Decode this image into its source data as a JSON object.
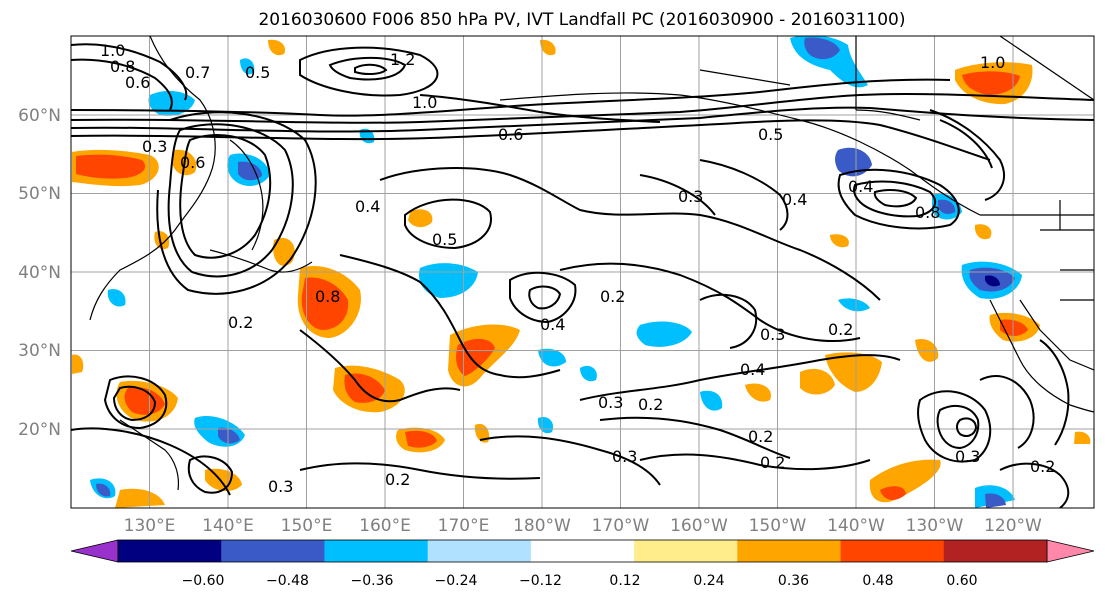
{
  "title": "2016030600 F006 850 hPa PV, IVT Landfall PC (2016030900 - 2016031100)",
  "lat_labels": [
    "60°N",
    "50°N",
    "40°N",
    "30°N",
    "20°N"
  ],
  "lon_labels": [
    "130°E",
    "140°E",
    "150°E",
    "160°E",
    "170°E",
    "180°W",
    "170°W",
    "160°W",
    "150°W",
    "140°W",
    "130°W",
    "120°W"
  ],
  "colorbar": {
    "ticks": [
      "−0.60",
      "−0.48",
      "−0.36",
      "−0.24",
      "−0.12",
      "0.12",
      "0.24",
      "0.36",
      "0.48",
      "0.60"
    ],
    "colors": [
      "#9932cc",
      "#000080",
      "#3a5bc7",
      "#00bfff",
      "#b0e2ff",
      "#ffffff",
      "#ffec8b",
      "#ffa500",
      "#ff4500",
      "#b22222",
      "#ff88aa"
    ]
  },
  "contour_labels": [
    "1.0",
    "0.8",
    "0.6",
    "0.7",
    "0.5",
    "0.3",
    "0.2",
    "0.4",
    "1.2",
    "1.0",
    "0.6",
    "0.5",
    "0.3",
    "0.2",
    "0.4",
    "0.8",
    "0.6",
    "0.3",
    "0.2",
    "0.4",
    "0.5",
    "1.0",
    "0.8",
    "0.2",
    "0.3",
    "0.4",
    "0.2",
    "0.3",
    "0.4",
    "0.2",
    "0.2",
    "0.3",
    "0.3",
    "0.2"
  ]
}
